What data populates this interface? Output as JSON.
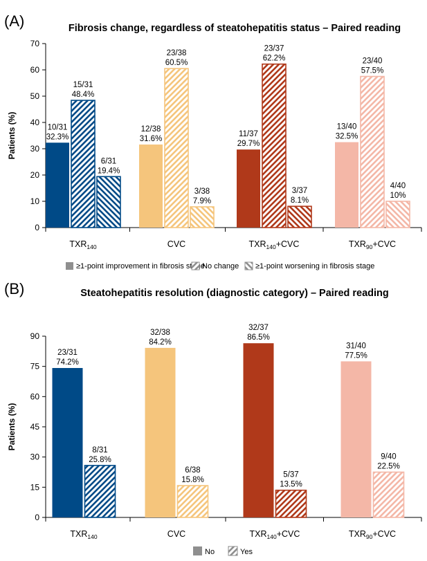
{
  "chart_data": [
    {
      "type": "bar",
      "panel_label": "(A)",
      "title": "Fibrosis change, regardless of steatohepatitis status – Paired reading",
      "xlabel": "",
      "ylabel": "Patients (%)",
      "ylim": [
        0,
        70
      ],
      "yticks": [
        "0",
        "10",
        "20",
        "30",
        "40",
        "50",
        "60",
        "70"
      ],
      "grid": false,
      "legend_position": "bottom",
      "categories": [
        {
          "main": "TXR",
          "sub": "140",
          "rest": ""
        },
        {
          "main": "CVC",
          "sub": "",
          "rest": ""
        },
        {
          "main": "TXR",
          "sub": "140",
          "rest": "+CVC"
        },
        {
          "main": "TXR",
          "sub": "90",
          "rest": "+CVC"
        }
      ],
      "category_colors": [
        "#004A87",
        "#F5C57C",
        "#B0391A",
        "#F4B7A7"
      ],
      "series": [
        {
          "name": "≥1-point improvement in fibrosis stage",
          "pattern": "solid",
          "values": [
            32.3,
            31.6,
            29.7,
            32.5
          ],
          "labels": [
            [
              "10/31",
              "32.3%"
            ],
            [
              "12/38",
              "31.6%"
            ],
            [
              "11/37",
              "29.7%"
            ],
            [
              "13/40",
              "32.5%"
            ]
          ]
        },
        {
          "name": "No change",
          "pattern": "hatch-up",
          "values": [
            48.4,
            60.5,
            62.2,
            57.5
          ],
          "labels": [
            [
              "15/31",
              "48.4%"
            ],
            [
              "23/38",
              "60.5%"
            ],
            [
              "23/37",
              "62.2%"
            ],
            [
              "23/40",
              "57.5%"
            ]
          ]
        },
        {
          "name": "≥1-point worsening in fibrosis stage",
          "pattern": "hatch-down",
          "values": [
            19.4,
            7.9,
            8.1,
            10
          ],
          "labels": [
            [
              "6/31",
              "19.4%"
            ],
            [
              "3/38",
              "7.9%"
            ],
            [
              "3/37",
              "8.1%"
            ],
            [
              "4/40",
              "10%"
            ]
          ]
        }
      ]
    },
    {
      "type": "bar",
      "panel_label": "(B)",
      "title": "Steatohepatitis resolution (diagnostic category)  – Paired reading",
      "xlabel": "",
      "ylabel": "Patients (%)",
      "ylim": [
        0,
        90
      ],
      "yticks": [
        "0",
        "15",
        "30",
        "45",
        "60",
        "75",
        "90"
      ],
      "grid": false,
      "legend_position": "bottom",
      "categories": [
        {
          "main": "TXR",
          "sub": "140",
          "rest": ""
        },
        {
          "main": "CVC",
          "sub": "",
          "rest": ""
        },
        {
          "main": "TXR",
          "sub": "140",
          "rest": "+CVC"
        },
        {
          "main": "TXR",
          "sub": "90",
          "rest": "+CVC"
        }
      ],
      "category_colors": [
        "#004A87",
        "#F5C57C",
        "#B0391A",
        "#F4B7A7"
      ],
      "series": [
        {
          "name": "No",
          "pattern": "solid",
          "values": [
            74.2,
            84.2,
            86.5,
            77.5
          ],
          "labels": [
            [
              "23/31",
              "74.2%"
            ],
            [
              "32/38",
              "84.2%"
            ],
            [
              "32/37",
              "86.5%"
            ],
            [
              "31/40",
              "77.5%"
            ]
          ]
        },
        {
          "name": "Yes",
          "pattern": "hatch-up",
          "values": [
            25.8,
            15.8,
            13.5,
            22.5
          ],
          "labels": [
            [
              "8/31",
              "25.8%"
            ],
            [
              "6/38",
              "15.8%"
            ],
            [
              "5/37",
              "13.5%"
            ],
            [
              "9/40",
              "22.5%"
            ]
          ]
        }
      ]
    }
  ]
}
